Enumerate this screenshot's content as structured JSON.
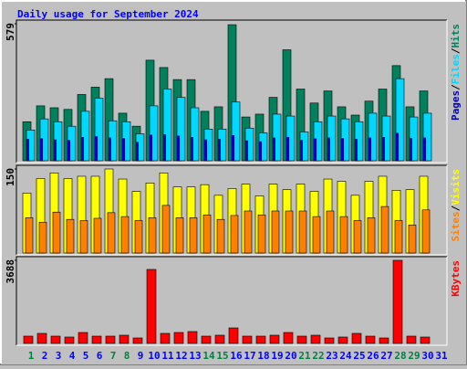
{
  "title": "Daily usage for September 2024",
  "legend_separator": "/",
  "chart_data": [
    {
      "type": "bar",
      "ylim": [
        0,
        579
      ],
      "yticks": [
        579
      ],
      "series": [
        {
          "name": "Hits",
          "color": "#00805c",
          "values": [
            165,
            232,
            224,
            217,
            280,
            311,
            347,
            201,
            146,
            425,
            394,
            343,
            343,
            209,
            228,
            575,
            185,
            197,
            268,
            469,
            303,
            244,
            295,
            228,
            193,
            252,
            303,
            402,
            228,
            295,
            null
          ]
        },
        {
          "name": "Files",
          "color": "#00d8ff",
          "values": [
            130,
            177,
            165,
            146,
            209,
            264,
            169,
            165,
            114,
            232,
            303,
            268,
            224,
            134,
            134,
            248,
            138,
            118,
            197,
            189,
            122,
            165,
            189,
            177,
            165,
            201,
            189,
            347,
            185,
            201,
            null
          ]
        },
        {
          "name": "Pages",
          "color": "#0000c0",
          "values": [
            92,
            95,
            90,
            88,
            100,
            104,
            98,
            96,
            80,
            110,
            112,
            106,
            100,
            90,
            92,
            108,
            86,
            82,
            98,
            100,
            88,
            94,
            98,
            96,
            92,
            98,
            100,
            118,
            96,
            98,
            null
          ]
        }
      ]
    },
    {
      "type": "bar",
      "ylim": [
        0,
        150
      ],
      "yticks": [
        150
      ],
      "series": [
        {
          "name": "Visits",
          "color": "#ffff00",
          "values": [
            107,
            133,
            143,
            133,
            137,
            137,
            150,
            132,
            110,
            125,
            143,
            118,
            118,
            122,
            103,
            115,
            123,
            102,
            123,
            113,
            123,
            110,
            132,
            128,
            103,
            128,
            137,
            112,
            113,
            137,
            null
          ]
        },
        {
          "name": "Sites",
          "color": "#ff8000",
          "values": [
            63,
            55,
            73,
            60,
            58,
            62,
            72,
            65,
            58,
            63,
            85,
            63,
            63,
            68,
            60,
            67,
            75,
            68,
            75,
            75,
            75,
            65,
            75,
            65,
            58,
            63,
            83,
            58,
            50,
            77,
            null
          ]
        }
      ]
    },
    {
      "type": "bar",
      "ylim": [
        0,
        3688
      ],
      "yticks": [
        3688
      ],
      "categories": [
        "1",
        "2",
        "3",
        "4",
        "5",
        "6",
        "7",
        "8",
        "9",
        "10",
        "11",
        "12",
        "13",
        "14",
        "15",
        "16",
        "17",
        "18",
        "19",
        "20",
        "21",
        "22",
        "23",
        "24",
        "25",
        "26",
        "27",
        "28",
        "29",
        "30",
        "31"
      ],
      "category_colors": [
        "#008040",
        "#0000ff",
        "#0000ff",
        "#0000ff",
        "#0000ff",
        "#0000ff",
        "#008040",
        "#008040",
        "#0000ff",
        "#0000ff",
        "#0000ff",
        "#0000ff",
        "#0000ff",
        "#008040",
        "#008040",
        "#0000ff",
        "#0000ff",
        "#0000ff",
        "#0000ff",
        "#0000ff",
        "#008040",
        "#008040",
        "#0000ff",
        "#0000ff",
        "#0000ff",
        "#0000ff",
        "#0000ff",
        "#008040",
        "#008040",
        "#0000ff",
        "#0000ff"
      ],
      "series": [
        {
          "name": "KBytes",
          "color": "#ff0000",
          "values": [
            324,
            446,
            324,
            284,
            486,
            324,
            324,
            365,
            243,
            3283,
            446,
            486,
            527,
            324,
            365,
            689,
            324,
            324,
            365,
            486,
            324,
            365,
            243,
            284,
            446,
            324,
            243,
            3688,
            324,
            284,
            null
          ]
        }
      ]
    }
  ]
}
